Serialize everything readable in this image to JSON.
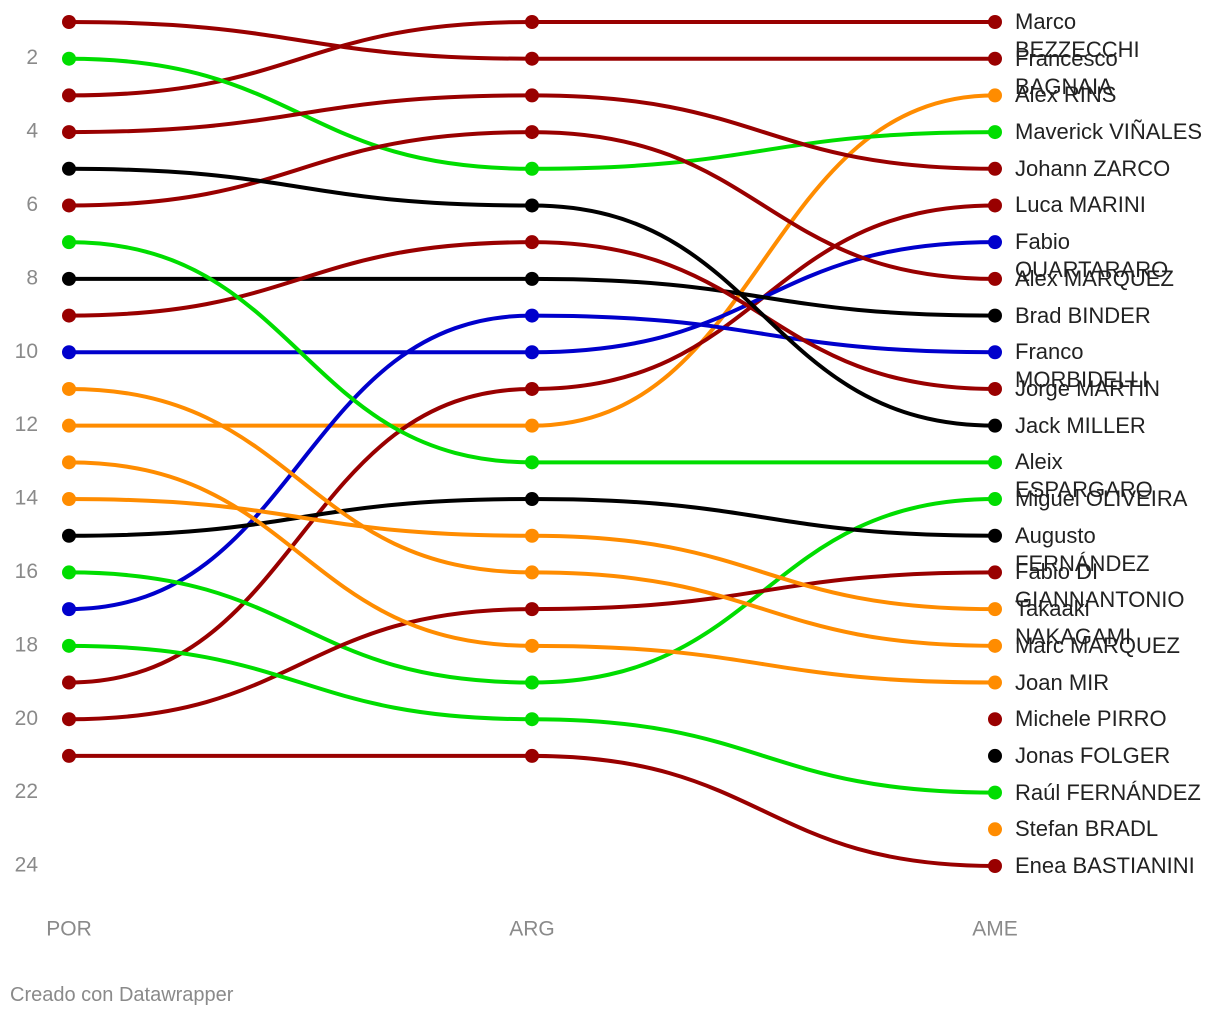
{
  "chart_data": {
    "type": "bump",
    "categories": [
      "POR",
      "ARG",
      "AME"
    ],
    "ylim": [
      1,
      24
    ],
    "y_reversed": true,
    "yticks": [
      2,
      4,
      6,
      8,
      10,
      12,
      14,
      16,
      18,
      20,
      22,
      24
    ],
    "series": [
      {
        "name": "Marco BEZZECCHI",
        "color": "#990000",
        "values": [
          3,
          1,
          1
        ]
      },
      {
        "name": "Francesco BAGNAIA",
        "color": "#990000",
        "values": [
          1,
          2,
          2
        ]
      },
      {
        "name": "Alex RINS",
        "color": "#ff8c00",
        "values": [
          12,
          12,
          3
        ]
      },
      {
        "name": "Maverick VIÑALES",
        "color": "#00dd00",
        "values": [
          2,
          5,
          4
        ]
      },
      {
        "name": "Johann ZARCO",
        "color": "#990000",
        "values": [
          4,
          3,
          5
        ]
      },
      {
        "name": "Luca MARINI",
        "color": "#990000",
        "values": [
          19,
          11,
          6
        ]
      },
      {
        "name": "Fabio QUARTARARO",
        "color": "#0000cc",
        "values": [
          10,
          10,
          7
        ]
      },
      {
        "name": "Alex MARQUEZ",
        "color": "#990000",
        "values": [
          6,
          4,
          8
        ]
      },
      {
        "name": "Brad BINDER",
        "color": "#000000",
        "values": [
          8,
          8,
          9
        ]
      },
      {
        "name": "Franco MORBIDELLI",
        "color": "#0000cc",
        "values": [
          17,
          9,
          10
        ]
      },
      {
        "name": "Jorge MARTIN",
        "color": "#990000",
        "values": [
          9,
          7,
          11
        ]
      },
      {
        "name": "Jack MILLER",
        "color": "#000000",
        "values": [
          5,
          6,
          12
        ]
      },
      {
        "name": "Aleix ESPARGARO",
        "color": "#00dd00",
        "values": [
          7,
          13,
          13
        ]
      },
      {
        "name": "Miguel OLIVEIRA",
        "color": "#00dd00",
        "values": [
          16,
          19,
          14
        ]
      },
      {
        "name": "Augusto FERNÁNDEZ",
        "color": "#000000",
        "values": [
          15,
          14,
          15
        ]
      },
      {
        "name": "Fabio DI GIANNANTONIO",
        "color": "#990000",
        "values": [
          20,
          17,
          16
        ]
      },
      {
        "name": "Takaaki NAKAGAMI",
        "color": "#ff8c00",
        "values": [
          14,
          15,
          17
        ]
      },
      {
        "name": "Marc MARQUEZ",
        "color": "#ff8c00",
        "values": [
          11,
          16,
          18
        ]
      },
      {
        "name": "Joan MIR",
        "color": "#ff8c00",
        "values": [
          13,
          18,
          19
        ]
      },
      {
        "name": "Michele PIRRO",
        "color": "#990000",
        "values": [
          null,
          null,
          20
        ]
      },
      {
        "name": "Jonas FOLGER",
        "color": "#000000",
        "values": [
          null,
          null,
          21
        ]
      },
      {
        "name": "Raúl FERNÁNDEZ",
        "color": "#00dd00",
        "values": [
          18,
          20,
          22
        ]
      },
      {
        "name": "Stefan BRADL",
        "color": "#ff8c00",
        "values": [
          null,
          null,
          23
        ]
      },
      {
        "name": "Enea BASTIANINI",
        "color": "#990000",
        "values": [
          21,
          21,
          24
        ]
      }
    ],
    "footer": "Creado con Datawrapper"
  }
}
